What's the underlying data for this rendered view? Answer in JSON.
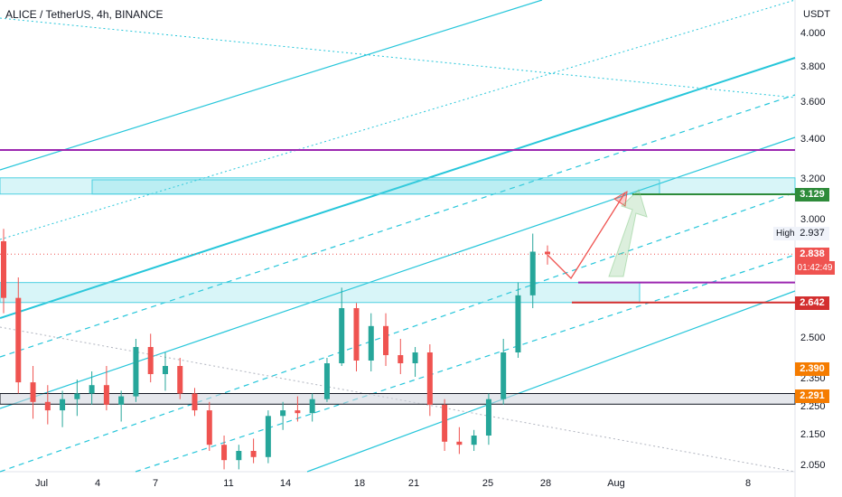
{
  "chart_title": "ALICE / TetherUS, 4h, BINANCE",
  "currency": "USDT",
  "chart_data": {
    "type": "candlestick",
    "x_tick_labels": [
      "Jul",
      "4",
      "7",
      "11",
      "14",
      "18",
      "21",
      "25",
      "28",
      "Aug",
      "8"
    ],
    "y_tick_labels": [
      "4.000",
      "3.800",
      "3.600",
      "3.400",
      "3.200",
      "3.000",
      "2.800",
      "2.500",
      "2.350",
      "2.250",
      "2.150",
      "2.050"
    ],
    "price_labels": [
      {
        "label": "3.129",
        "price": 3.129,
        "color": "#2e8b3a"
      },
      {
        "label": "2.937",
        "price": 2.937,
        "color": "#f0f3fa",
        "text_color": "#131722",
        "tag": "High"
      },
      {
        "label": "2.838",
        "price": 2.838,
        "color": "#ef5350",
        "countdown": "01:42:49"
      },
      {
        "label": "2.642",
        "price": 2.642,
        "color": "#d32f2f"
      },
      {
        "label": "2.390",
        "price": 2.39,
        "color": "#f57c00"
      },
      {
        "label": "2.291",
        "price": 2.291,
        "color": "#f57c00"
      }
    ],
    "horizontal_levels": [
      {
        "price": 3.35,
        "color": "#9c27b0"
      },
      {
        "price": 3.129,
        "color": "#2e8b3a"
      },
      {
        "price": 2.642,
        "color": "#d32f2f"
      }
    ],
    "zones": [
      {
        "top": 3.21,
        "bottom": 3.13,
        "color": "#4dd0e1"
      },
      {
        "top": 2.72,
        "bottom": 2.642,
        "color": "#4dd0e1"
      },
      {
        "top": 2.3,
        "bottom": 2.262,
        "color": "#cfd3dc"
      }
    ],
    "candles": [
      {
        "o": 2.9,
        "h": 2.96,
        "l": 2.6,
        "c": 2.66
      },
      {
        "o": 2.66,
        "h": 2.74,
        "l": 2.3,
        "c": 2.34
      },
      {
        "o": 2.34,
        "h": 2.4,
        "l": 2.21,
        "c": 2.27
      },
      {
        "o": 2.27,
        "h": 2.33,
        "l": 2.19,
        "c": 2.24
      },
      {
        "o": 2.24,
        "h": 2.31,
        "l": 2.18,
        "c": 2.28
      },
      {
        "o": 2.28,
        "h": 2.35,
        "l": 2.22,
        "c": 2.3
      },
      {
        "o": 2.3,
        "h": 2.38,
        "l": 2.26,
        "c": 2.33
      },
      {
        "o": 2.33,
        "h": 2.4,
        "l": 2.24,
        "c": 2.26
      },
      {
        "o": 2.26,
        "h": 2.31,
        "l": 2.2,
        "c": 2.29
      },
      {
        "o": 2.29,
        "h": 2.5,
        "l": 2.27,
        "c": 2.47
      },
      {
        "o": 2.47,
        "h": 2.52,
        "l": 2.34,
        "c": 2.37
      },
      {
        "o": 2.37,
        "h": 2.45,
        "l": 2.31,
        "c": 2.4
      },
      {
        "o": 2.4,
        "h": 2.43,
        "l": 2.28,
        "c": 2.3
      },
      {
        "o": 2.3,
        "h": 2.32,
        "l": 2.22,
        "c": 2.24
      },
      {
        "o": 2.24,
        "h": 2.27,
        "l": 2.1,
        "c": 2.12
      },
      {
        "o": 2.12,
        "h": 2.15,
        "l": 2.04,
        "c": 2.07
      },
      {
        "o": 2.07,
        "h": 2.12,
        "l": 2.04,
        "c": 2.1
      },
      {
        "o": 2.1,
        "h": 2.14,
        "l": 2.06,
        "c": 2.08
      },
      {
        "o": 2.08,
        "h": 2.24,
        "l": 2.06,
        "c": 2.22
      },
      {
        "o": 2.22,
        "h": 2.27,
        "l": 2.17,
        "c": 2.24
      },
      {
        "o": 2.24,
        "h": 2.29,
        "l": 2.2,
        "c": 2.23
      },
      {
        "o": 2.23,
        "h": 2.3,
        "l": 2.2,
        "c": 2.28
      },
      {
        "o": 2.28,
        "h": 2.43,
        "l": 2.27,
        "c": 2.41
      },
      {
        "o": 2.41,
        "h": 2.7,
        "l": 2.4,
        "c": 2.62
      },
      {
        "o": 2.62,
        "h": 2.64,
        "l": 2.38,
        "c": 2.42
      },
      {
        "o": 2.42,
        "h": 2.6,
        "l": 2.38,
        "c": 2.55
      },
      {
        "o": 2.55,
        "h": 2.6,
        "l": 2.4,
        "c": 2.44
      },
      {
        "o": 2.44,
        "h": 2.5,
        "l": 2.37,
        "c": 2.41
      },
      {
        "o": 2.41,
        "h": 2.47,
        "l": 2.36,
        "c": 2.45
      },
      {
        "o": 2.45,
        "h": 2.48,
        "l": 2.22,
        "c": 2.26
      },
      {
        "o": 2.26,
        "h": 2.28,
        "l": 2.1,
        "c": 2.13
      },
      {
        "o": 2.13,
        "h": 2.18,
        "l": 2.09,
        "c": 2.12
      },
      {
        "o": 2.12,
        "h": 2.17,
        "l": 2.1,
        "c": 2.15
      },
      {
        "o": 2.15,
        "h": 2.3,
        "l": 2.12,
        "c": 2.28
      },
      {
        "o": 2.28,
        "h": 2.5,
        "l": 2.26,
        "c": 2.45
      },
      {
        "o": 2.45,
        "h": 2.72,
        "l": 2.43,
        "c": 2.67
      },
      {
        "o": 2.67,
        "h": 2.937,
        "l": 2.62,
        "c": 2.85
      },
      {
        "o": 2.85,
        "h": 2.88,
        "l": 2.79,
        "c": 2.838
      }
    ]
  }
}
